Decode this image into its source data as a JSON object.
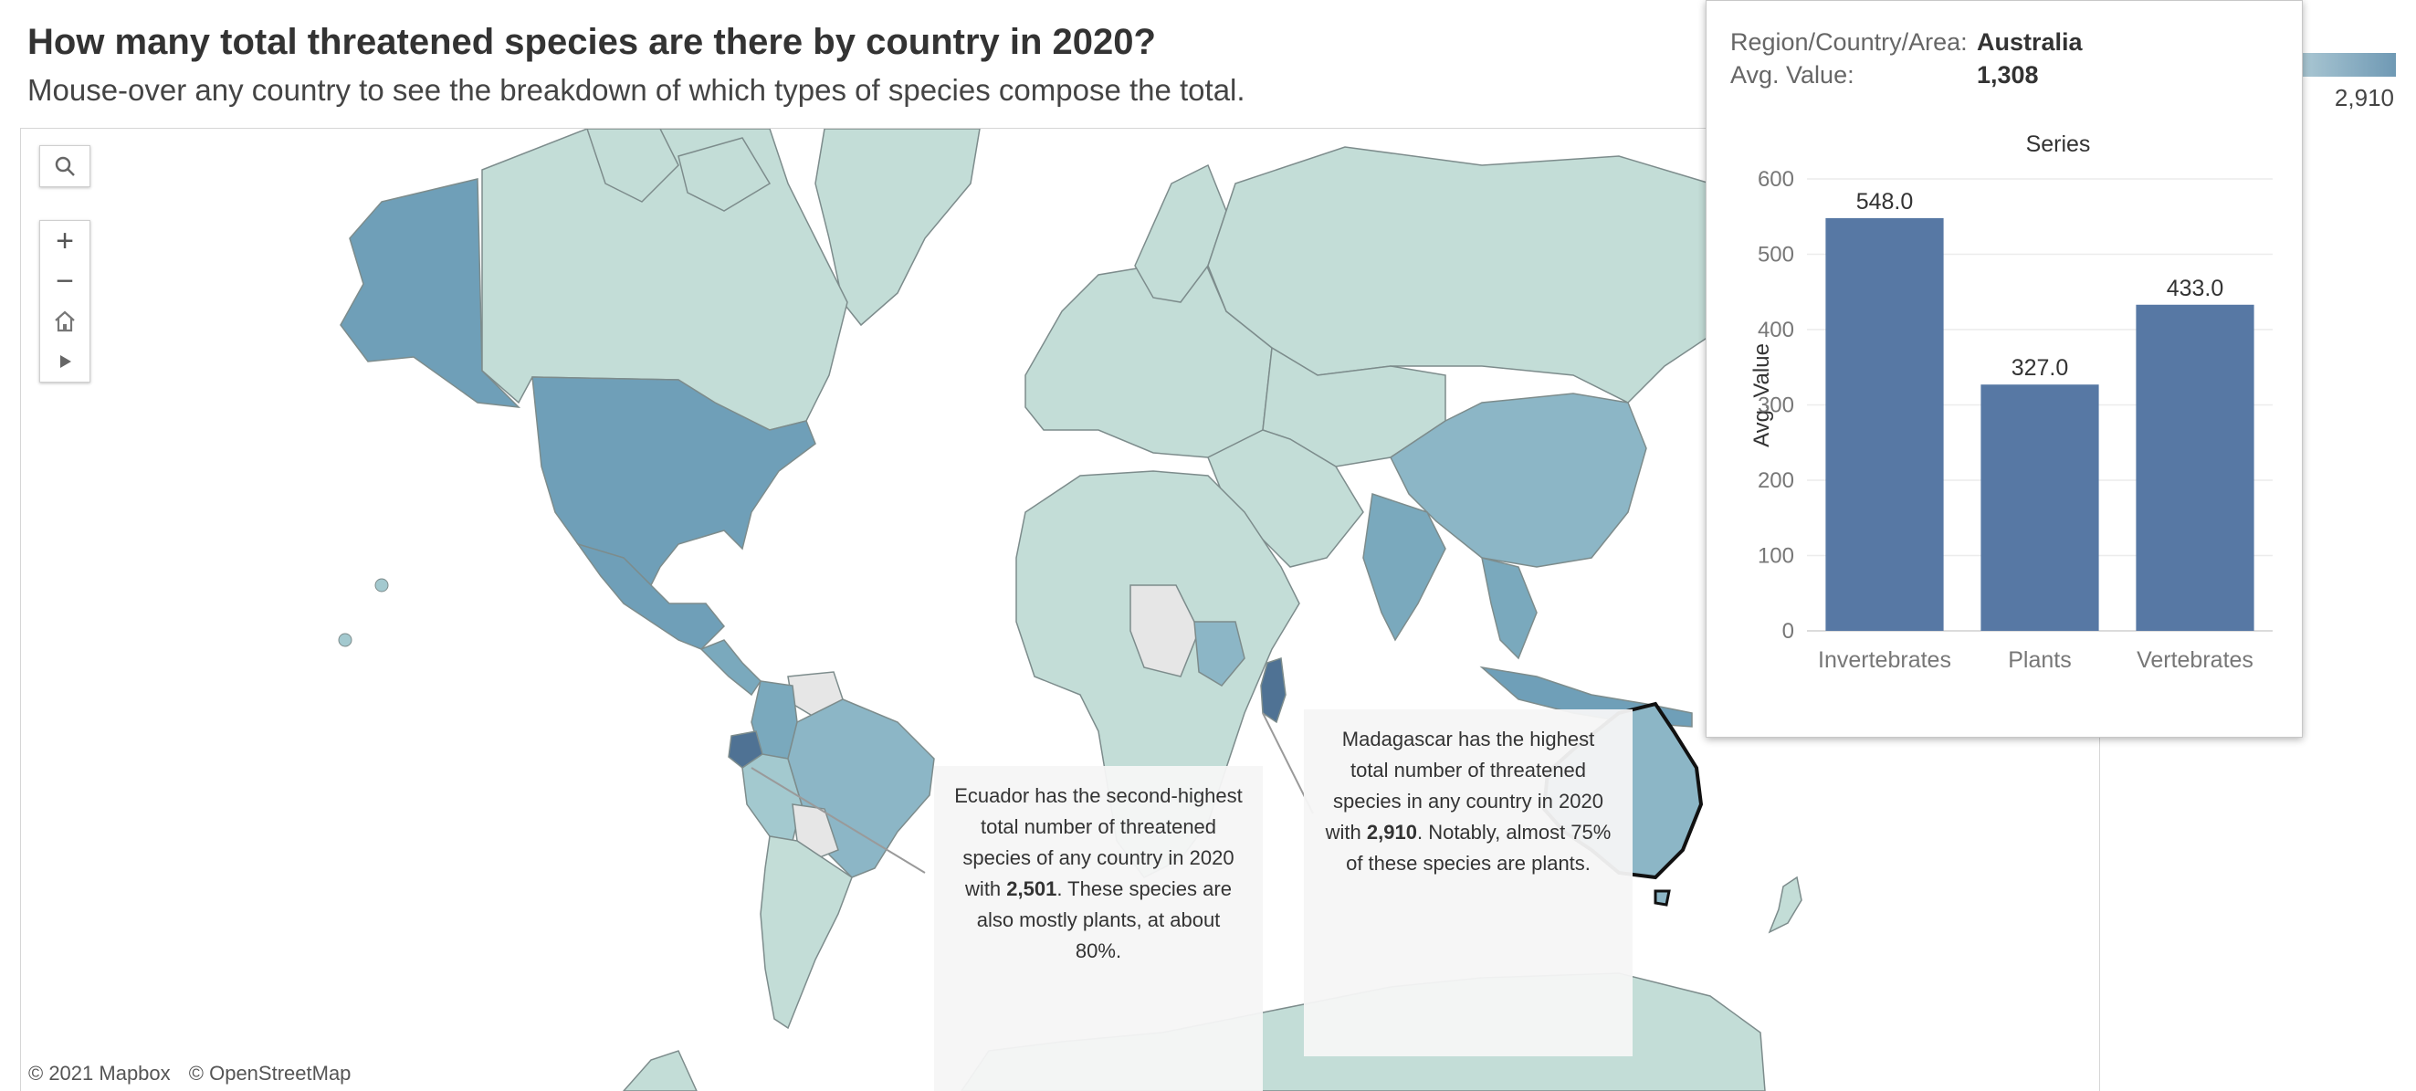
{
  "header": {
    "title": "How many total threatened species are there by country in 2020?",
    "subtitle": "Mouse-over any country to see the breakdown of which types of species compose the total."
  },
  "map_controls": {
    "search_icon": "magnifier-icon",
    "zoom_in": "+",
    "zoom_out": "−",
    "home_icon": "home-icon",
    "play_icon": "play-icon"
  },
  "attribution": {
    "mapbox": "© 2021 Mapbox",
    "osm": "© OpenStreetMap"
  },
  "legend": {
    "max_label": "2,910",
    "color_low": "#c3ddd7",
    "color_high": "#5a7aa0"
  },
  "annotations": {
    "ecuador": {
      "before": "Ecuador has the second-highest total number of threatened species of any country in 2020 with ",
      "value": "2,501",
      "after": ". These species are also mostly plants, at about 80%."
    },
    "madagascar": {
      "before": "Madagascar has the highest total number of threatened species in any country in 2020 with ",
      "value": "2,910",
      "after": ". Notably, almost 75% of these species are plants."
    }
  },
  "tooltip": {
    "region_key": "Region/Country/Area:",
    "region_value": "Australia",
    "avg_key": "Avg. Value:",
    "avg_value": "1,308"
  },
  "chart_data": {
    "type": "bar",
    "title": "Series",
    "ylabel": "Avg. Value",
    "xlabel": "",
    "categories": [
      "Invertebrates",
      "Plants",
      "Vertebrates"
    ],
    "values": [
      548.0,
      327.0,
      433.0
    ],
    "value_labels": [
      "548.0",
      "327.0",
      "433.0"
    ],
    "yticks": [
      0,
      100,
      200,
      300,
      400,
      500,
      600
    ],
    "ylim": [
      0,
      600
    ],
    "bar_color": "#5778a4",
    "grid": true
  },
  "colors": {
    "land_default": "#c3ddd7",
    "land_mid": "#a3c9cf",
    "land_high": "#7aa9bd",
    "land_top": "#5a7aa0",
    "no_data": "#e6e6e6",
    "ocean": "#ffffff",
    "border": "#7d8c8c"
  }
}
